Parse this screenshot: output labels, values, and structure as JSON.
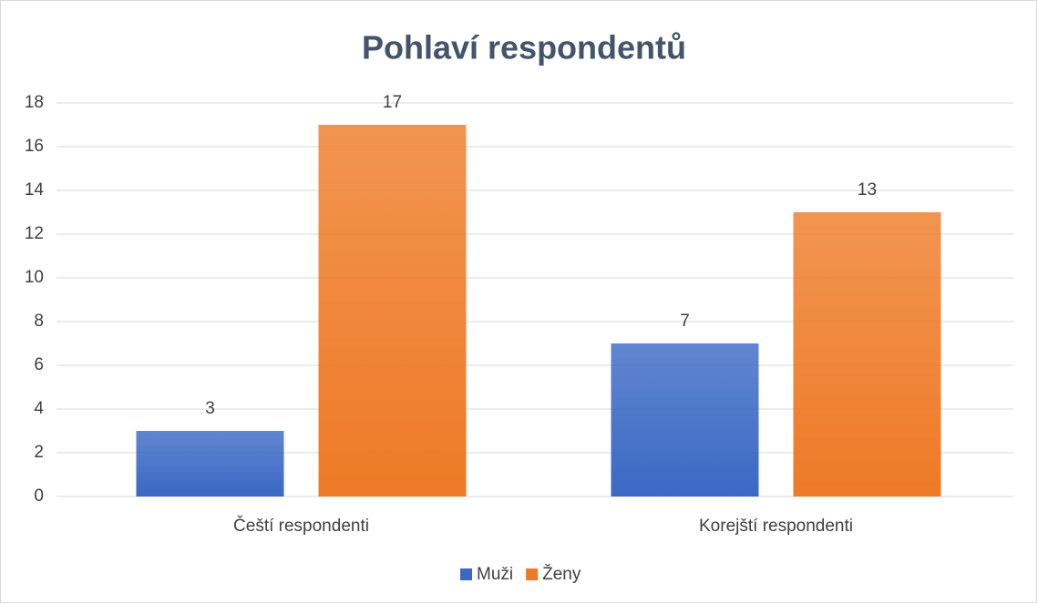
{
  "chart_data": {
    "type": "bar",
    "title": "Pohlaví respondentů",
    "categories": [
      "Čeští respondenti",
      "Korejští respondenti"
    ],
    "series": [
      {
        "name": "Muži",
        "color": "#3a68c4",
        "values": [
          3,
          7
        ]
      },
      {
        "name": "Ženy",
        "color": "#ee7a26",
        "values": [
          17,
          13
        ]
      }
    ],
    "ylim": [
      0,
      18
    ],
    "yticks": [
      0,
      2,
      4,
      6,
      8,
      10,
      12,
      14,
      16,
      18
    ],
    "grid": true,
    "legend": "bottom"
  }
}
